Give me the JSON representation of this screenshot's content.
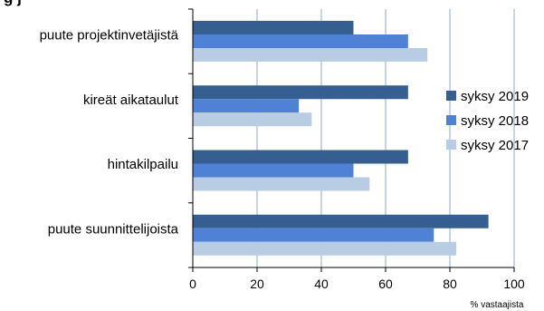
{
  "chart_data": {
    "type": "bar",
    "orientation": "horizontal",
    "title_fragment": "g                                    j",
    "categories": [
      "puute projektinvetäjistä",
      "kireät aikataulut",
      "hintakilpailu",
      "puute suunnittelijoista"
    ],
    "series": [
      {
        "name": "syksy 2019",
        "color": "#365f91",
        "values": [
          50,
          67,
          67,
          92
        ]
      },
      {
        "name": "syksy 2018",
        "color": "#4f81d5",
        "values": [
          67,
          33,
          50,
          75
        ]
      },
      {
        "name": "syksy 2017",
        "color": "#b8cce4",
        "values": [
          73,
          37,
          55,
          82
        ]
      }
    ],
    "xlim": [
      0,
      100
    ],
    "xticks": [
      0,
      20,
      40,
      60,
      80,
      100
    ],
    "xlabel": "% vastaajista",
    "grid": true,
    "legend_position": "right"
  }
}
